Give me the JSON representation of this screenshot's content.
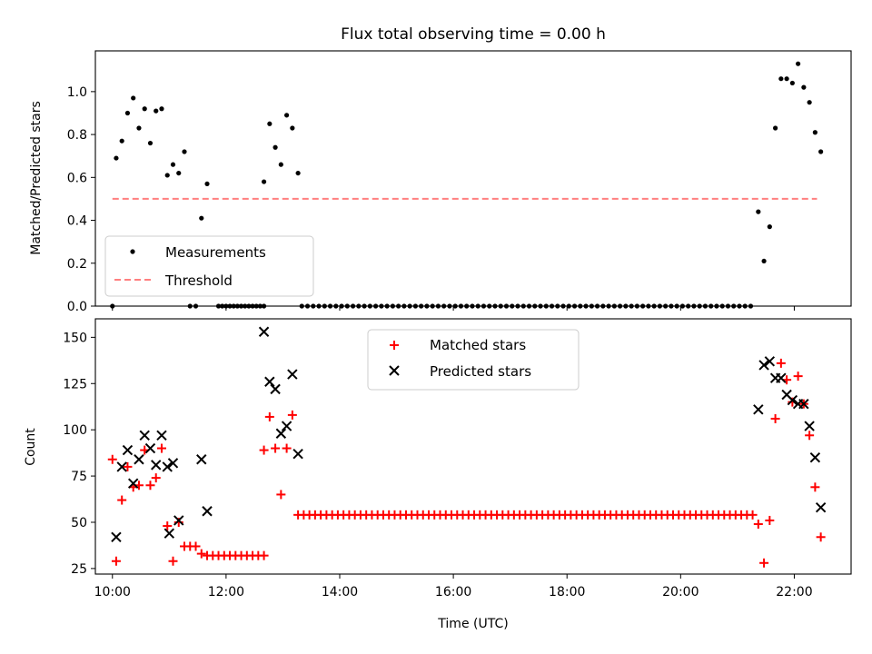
{
  "colors": {
    "measurements": "#000000",
    "threshold": "#ff7f7f",
    "matched": "#ff0000",
    "predicted": "#000000",
    "axes": "#000000"
  },
  "chart_data": [
    {
      "type": "scatter",
      "title": "Flux total observing time = 0.00 h",
      "xlabel": "",
      "ylabel": "Matched/Predicted stars",
      "x_unit": "hours UTC",
      "xlim": [
        "09:42",
        "23:00"
      ],
      "ylim": [
        0,
        1.19
      ],
      "yticks": [
        "0.0",
        "0.2",
        "0.4",
        "0.6",
        "0.8",
        "1.0"
      ],
      "legend": {
        "placement": "lower-left",
        "entries": [
          "Measurements",
          "Threshold"
        ]
      },
      "threshold": {
        "name": "Threshold",
        "value": 0.5,
        "x_start": "10:00",
        "x_end": "22:24"
      },
      "measurements": {
        "name": "Measurements",
        "points": [
          [
            "10:00",
            0.0
          ],
          [
            "10:04",
            0.69
          ],
          [
            "10:10",
            0.77
          ],
          [
            "10:16",
            0.9
          ],
          [
            "10:22",
            0.97
          ],
          [
            "10:28",
            0.83
          ],
          [
            "10:34",
            0.92
          ],
          [
            "10:40",
            0.76
          ],
          [
            "10:46",
            0.91
          ],
          [
            "10:52",
            0.92
          ],
          [
            "10:58",
            0.61
          ],
          [
            "11:04",
            0.66
          ],
          [
            "11:10",
            0.62
          ],
          [
            "11:16",
            0.72
          ],
          [
            "11:22",
            0.0
          ],
          [
            "11:28",
            0.0
          ],
          [
            "11:34",
            0.41
          ],
          [
            "11:40",
            0.57
          ],
          [
            "12:40",
            0.58
          ],
          [
            "12:46",
            0.85
          ],
          [
            "12:52",
            0.74
          ],
          [
            "12:58",
            0.66
          ],
          [
            "13:04",
            0.89
          ],
          [
            "13:10",
            0.83
          ],
          [
            "13:16",
            0.62
          ],
          [
            "21:22",
            0.44
          ],
          [
            "21:28",
            0.21
          ],
          [
            "21:34",
            0.37
          ],
          [
            "21:40",
            0.83
          ],
          [
            "21:46",
            1.06
          ],
          [
            "21:52",
            1.06
          ],
          [
            "21:58",
            1.04
          ],
          [
            "22:04",
            1.13
          ],
          [
            "22:10",
            1.02
          ],
          [
            "22:16",
            0.95
          ],
          [
            "22:22",
            0.81
          ],
          [
            "22:28",
            0.72
          ]
        ],
        "zero_ranges": [
          {
            "from": "11:52",
            "to": "12:40",
            "step_minutes": 4,
            "value": 0.0
          },
          {
            "from": "13:20",
            "to": "21:18",
            "step_minutes": 6,
            "value": 0.0
          }
        ]
      }
    },
    {
      "type": "scatter",
      "title": "",
      "xlabel": "Time (UTC)",
      "ylabel": "Count",
      "x_unit": "hours UTC",
      "xlim": [
        "09:42",
        "23:00"
      ],
      "ylim": [
        22,
        160
      ],
      "xticks": [
        "10:00",
        "12:00",
        "14:00",
        "16:00",
        "18:00",
        "20:00",
        "22:00"
      ],
      "yticks": [
        "25",
        "50",
        "75",
        "100",
        "125",
        "150"
      ],
      "legend": {
        "placement": "top-center",
        "entries": [
          "Matched stars",
          "Predicted stars"
        ]
      },
      "series": [
        {
          "name": "Matched stars",
          "marker": "+",
          "points": [
            [
              "10:00",
              84
            ],
            [
              "10:04",
              29
            ],
            [
              "10:10",
              62
            ],
            [
              "10:16",
              80
            ],
            [
              "10:22",
              69
            ],
            [
              "10:28",
              70
            ],
            [
              "10:34",
              89
            ],
            [
              "10:40",
              70
            ],
            [
              "10:46",
              74
            ],
            [
              "10:52",
              90
            ],
            [
              "10:58",
              48
            ],
            [
              "11:04",
              29
            ],
            [
              "11:10",
              50
            ],
            [
              "11:16",
              37
            ],
            [
              "11:22",
              37
            ],
            [
              "11:28",
              37
            ],
            [
              "11:34",
              33
            ],
            [
              "11:40",
              32
            ],
            [
              "12:40",
              89
            ],
            [
              "12:46",
              107
            ],
            [
              "12:52",
              90
            ],
            [
              "12:58",
              65
            ],
            [
              "13:04",
              90
            ],
            [
              "13:10",
              108
            ],
            [
              "13:16",
              54
            ],
            [
              "21:22",
              49
            ],
            [
              "21:28",
              28
            ],
            [
              "21:34",
              51
            ],
            [
              "21:40",
              106
            ],
            [
              "21:46",
              136
            ],
            [
              "21:52",
              127
            ],
            [
              "21:58",
              115
            ],
            [
              "22:04",
              129
            ],
            [
              "22:10",
              114
            ],
            [
              "22:16",
              97
            ],
            [
              "22:22",
              69
            ],
            [
              "22:28",
              42
            ]
          ],
          "constant_ranges": [
            {
              "from": "11:46",
              "to": "12:40",
              "step_minutes": 6,
              "value": 32
            },
            {
              "from": "13:22",
              "to": "21:16",
              "step_minutes": 6,
              "value": 54
            }
          ]
        },
        {
          "name": "Predicted stars",
          "marker": "x",
          "points": [
            [
              "10:04",
              42
            ],
            [
              "10:10",
              80
            ],
            [
              "10:16",
              89
            ],
            [
              "10:22",
              71
            ],
            [
              "10:28",
              84
            ],
            [
              "10:34",
              97
            ],
            [
              "10:40",
              90
            ],
            [
              "10:46",
              81
            ],
            [
              "10:52",
              97
            ],
            [
              "10:58",
              80
            ],
            [
              "11:00",
              44
            ],
            [
              "11:04",
              82
            ],
            [
              "11:10",
              51
            ],
            [
              "11:34",
              84
            ],
            [
              "11:40",
              56
            ],
            [
              "12:40",
              153
            ],
            [
              "12:46",
              126
            ],
            [
              "12:52",
              122
            ],
            [
              "12:58",
              98
            ],
            [
              "13:04",
              102
            ],
            [
              "13:10",
              130
            ],
            [
              "13:16",
              87
            ],
            [
              "21:22",
              111
            ],
            [
              "21:28",
              135
            ],
            [
              "21:34",
              137
            ],
            [
              "21:40",
              128
            ],
            [
              "21:46",
              128
            ],
            [
              "21:52",
              119
            ],
            [
              "21:58",
              116
            ],
            [
              "22:04",
              114
            ],
            [
              "22:10",
              114
            ],
            [
              "22:16",
              102
            ],
            [
              "22:22",
              85
            ],
            [
              "22:28",
              58
            ]
          ]
        }
      ]
    }
  ]
}
